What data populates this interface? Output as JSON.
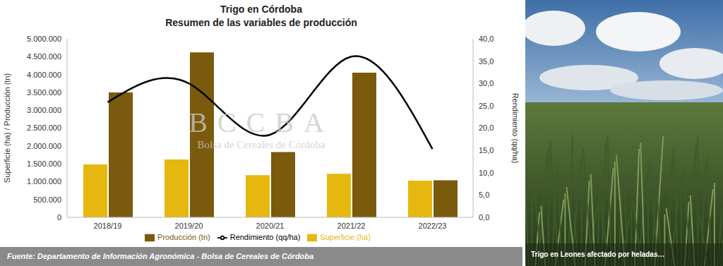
{
  "chart_data": {
    "type": "bar",
    "title": "Trigo en Córdoba",
    "subtitle": "Resumen de las variables de producción",
    "categories": [
      "2018/19",
      "2019/20",
      "2020/21",
      "2021/22",
      "2022/23"
    ],
    "series": [
      {
        "name": "Superficie (ha)",
        "color": "#e6b80f",
        "values": [
          1480000,
          1620000,
          1180000,
          1220000,
          1030000
        ]
      },
      {
        "name": "Producción (tn)",
        "color": "#7a5a0c",
        "values": [
          3500000,
          4620000,
          1830000,
          4050000,
          1040000
        ]
      },
      {
        "name": "Rendimiento (qq/ha)",
        "color": "#000000",
        "type": "line",
        "axis": "y2",
        "values": [
          25.8,
          30.0,
          18.5,
          36.0,
          15.3
        ]
      }
    ],
    "ylabel": "Superficie (ha) / Producción (tn)",
    "y2label": "Rendimiento (qq/ha)",
    "ylim": [
      0,
      5000000
    ],
    "yticks": [
      0,
      {
        "value": 500000,
        "label": "500.000"
      },
      {
        "value": 1000000,
        "label": "1.000.000"
      },
      {
        "value": 1500000,
        "label": "1.500.000"
      },
      {
        "value": 2000000,
        "label": "2.000.000"
      },
      {
        "value": 2500000,
        "label": "2.500.000"
      },
      {
        "value": 3000000,
        "label": "3.000.000"
      },
      {
        "value": 3500000,
        "label": "3.500.000"
      },
      {
        "value": 4000000,
        "label": "4.000.000"
      },
      {
        "value": 4500000,
        "label": "4.500.000"
      },
      {
        "value": 5000000,
        "label": "5.000.000"
      }
    ],
    "y2lim": [
      0,
      40
    ],
    "y2ticks": [
      {
        "value": 0,
        "label": "0,0"
      },
      {
        "value": 5,
        "label": "5,0"
      },
      {
        "value": 10,
        "label": "10,0"
      },
      {
        "value": 15,
        "label": "15,0"
      },
      {
        "value": 20,
        "label": "20,0"
      },
      {
        "value": 25,
        "label": "25,0"
      },
      {
        "value": 30,
        "label": "30,0"
      },
      {
        "value": 35,
        "label": "35,0"
      },
      {
        "value": 40,
        "label": "40,0"
      }
    ],
    "grid": false,
    "legend": "bottom",
    "source": "Fuente: Departamento de Información Agronómica - Bolsa de Cereales de Córdoba"
  },
  "watermark": {
    "logo": "BCCBA",
    "text": "Bolsa de Cereales de Córdoba"
  },
  "photo": {
    "caption": "Trigo en Leones afectado por heladas…"
  }
}
